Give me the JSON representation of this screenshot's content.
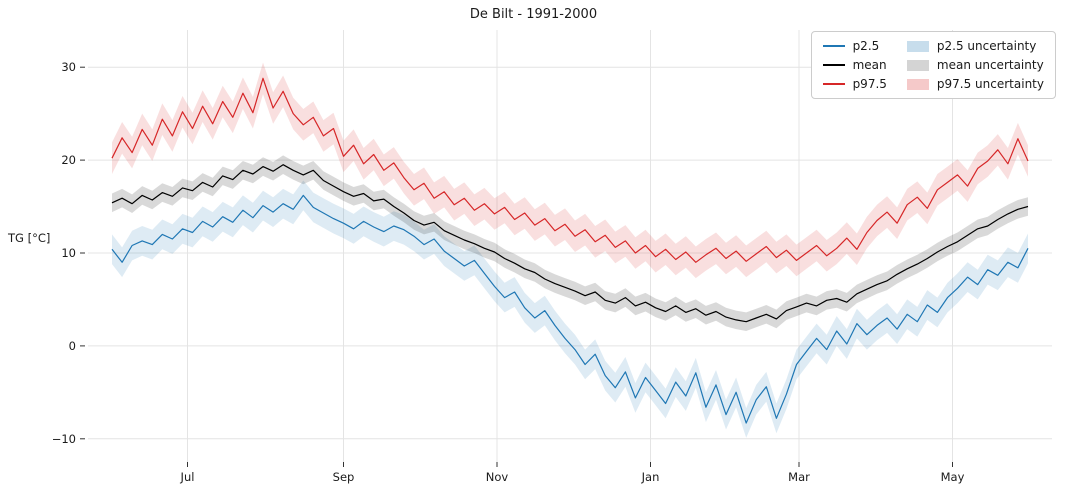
{
  "title": "De Bilt - 1991-2000",
  "ylabel": "TG [°C]",
  "axes": {
    "y_ticks": [
      {
        "value": -10,
        "label": "−10"
      },
      {
        "value": 0,
        "label": "0"
      },
      {
        "value": 10,
        "label": "10"
      },
      {
        "value": 20,
        "label": "20"
      },
      {
        "value": 30,
        "label": "30"
      }
    ],
    "x_ticks": [
      {
        "day": 30,
        "label": "Jul"
      },
      {
        "day": 92,
        "label": "Sep"
      },
      {
        "day": 153,
        "label": "Nov"
      },
      {
        "day": 214,
        "label": "Jan"
      },
      {
        "day": 273,
        "label": "Mar"
      },
      {
        "day": 334,
        "label": "May"
      }
    ],
    "ylim": [
      -12.5,
      34
    ],
    "grid": true
  },
  "legend": {
    "position": "top-right",
    "items": [
      {
        "label": "p2.5",
        "type": "line",
        "color": "#1f77b4"
      },
      {
        "label": "mean",
        "type": "line",
        "color": "#000000"
      },
      {
        "label": "p97.5",
        "type": "line",
        "color": "#d62728"
      },
      {
        "label": "p2.5 uncertainty",
        "type": "patch",
        "color": "#1f77b4"
      },
      {
        "label": "mean uncertainty",
        "type": "patch",
        "color": "#555555"
      },
      {
        "label": "p97.5 uncertainty",
        "type": "patch",
        "color": "#d62728"
      }
    ]
  },
  "chart_data": {
    "type": "line",
    "title": "De Bilt - 1991-2000",
    "xlabel": "",
    "ylabel": "TG [°C]",
    "x_tick_labels": [
      "Jul",
      "Sep",
      "Nov",
      "Jan",
      "Mar",
      "May"
    ],
    "ylim": [
      -12.5,
      34
    ],
    "grid": true,
    "legend_position": "top-right",
    "x_days": [
      0,
      4,
      8,
      12,
      16,
      20,
      24,
      28,
      32,
      36,
      40,
      44,
      48,
      52,
      56,
      60,
      64,
      68,
      72,
      76,
      80,
      84,
      88,
      92,
      96,
      100,
      104,
      108,
      112,
      116,
      120,
      124,
      128,
      132,
      136,
      140,
      144,
      148,
      152,
      156,
      160,
      164,
      168,
      172,
      176,
      180,
      184,
      188,
      192,
      196,
      200,
      204,
      208,
      212,
      216,
      220,
      224,
      228,
      232,
      236,
      240,
      244,
      248,
      252,
      256,
      260,
      264,
      268,
      272,
      276,
      280,
      284,
      288,
      292,
      296,
      300,
      304,
      308,
      312,
      316,
      320,
      324,
      328,
      332,
      336,
      340,
      344,
      348,
      352,
      356,
      360,
      364
    ],
    "series": [
      {
        "name": "p2.5",
        "color": "#1f77b4",
        "uncertainty_halfwidth": 1.6,
        "values": [
          10.4,
          9.0,
          10.8,
          11.3,
          10.9,
          12.0,
          11.5,
          12.6,
          12.2,
          13.4,
          12.8,
          13.9,
          13.3,
          14.6,
          13.8,
          15.1,
          14.4,
          15.3,
          14.7,
          16.2,
          14.9,
          14.3,
          13.7,
          13.2,
          12.6,
          13.4,
          12.8,
          12.3,
          12.9,
          12.5,
          11.8,
          10.9,
          11.5,
          10.2,
          9.4,
          8.6,
          9.2,
          7.8,
          6.4,
          5.2,
          5.8,
          4.1,
          3.0,
          3.8,
          2.2,
          0.8,
          -0.4,
          -2.0,
          -0.9,
          -3.2,
          -4.5,
          -2.8,
          -5.6,
          -3.4,
          -4.8,
          -6.2,
          -3.9,
          -5.4,
          -2.9,
          -6.6,
          -4.2,
          -7.4,
          -5.0,
          -8.3,
          -5.8,
          -4.4,
          -7.8,
          -5.2,
          -2.0,
          -0.6,
          0.8,
          -0.4,
          1.6,
          0.2,
          2.4,
          1.2,
          2.2,
          3.0,
          1.8,
          3.4,
          2.6,
          4.4,
          3.6,
          5.2,
          6.2,
          7.4,
          6.6,
          8.2,
          7.6,
          9.0,
          8.4,
          10.5
        ]
      },
      {
        "name": "mean",
        "color": "#000000",
        "uncertainty_halfwidth": 1.0,
        "values": [
          15.4,
          15.9,
          15.3,
          16.2,
          15.7,
          16.5,
          16.1,
          17.0,
          16.7,
          17.6,
          17.1,
          18.3,
          17.9,
          18.9,
          18.5,
          19.3,
          18.8,
          19.5,
          18.9,
          18.4,
          18.9,
          17.8,
          17.2,
          16.6,
          16.1,
          16.4,
          15.6,
          15.8,
          15.0,
          14.3,
          13.5,
          13.0,
          13.3,
          12.4,
          11.9,
          11.4,
          11.0,
          10.5,
          10.1,
          9.4,
          8.9,
          8.3,
          7.9,
          7.2,
          6.7,
          6.3,
          5.9,
          5.4,
          5.8,
          4.9,
          4.6,
          5.2,
          4.3,
          4.7,
          4.1,
          3.7,
          4.3,
          3.6,
          4.0,
          3.3,
          3.7,
          3.1,
          2.8,
          2.6,
          3.0,
          3.4,
          2.9,
          3.8,
          4.2,
          4.6,
          4.3,
          4.9,
          5.1,
          4.7,
          5.6,
          6.1,
          6.6,
          7.0,
          7.7,
          8.3,
          8.8,
          9.4,
          10.1,
          10.7,
          11.2,
          11.9,
          12.6,
          12.9,
          13.6,
          14.2,
          14.7,
          15.0
        ]
      },
      {
        "name": "p97.5",
        "color": "#d62728",
        "uncertainty_halfwidth": 1.7,
        "values": [
          20.2,
          22.4,
          20.8,
          23.3,
          21.6,
          24.4,
          22.6,
          25.2,
          23.4,
          25.8,
          23.9,
          26.3,
          24.6,
          27.2,
          25.1,
          28.8,
          25.6,
          27.4,
          25.0,
          23.8,
          24.6,
          22.6,
          23.4,
          20.4,
          21.6,
          19.6,
          20.6,
          18.9,
          19.7,
          18.1,
          16.8,
          17.5,
          15.9,
          16.6,
          15.2,
          15.9,
          14.6,
          15.3,
          14.2,
          14.9,
          13.6,
          14.3,
          13.0,
          13.7,
          12.4,
          13.1,
          11.8,
          12.5,
          11.2,
          11.9,
          10.6,
          11.3,
          10.0,
          10.8,
          9.6,
          10.4,
          9.3,
          10.1,
          9.0,
          9.8,
          10.5,
          9.4,
          10.2,
          9.1,
          9.9,
          10.7,
          9.5,
          10.3,
          9.2,
          10.0,
          10.8,
          9.7,
          10.5,
          11.6,
          10.4,
          12.2,
          13.5,
          14.4,
          13.2,
          15.2,
          16.0,
          14.8,
          16.8,
          17.6,
          18.4,
          17.2,
          19.1,
          19.9,
          21.1,
          19.6,
          22.3,
          19.9
        ]
      }
    ]
  }
}
